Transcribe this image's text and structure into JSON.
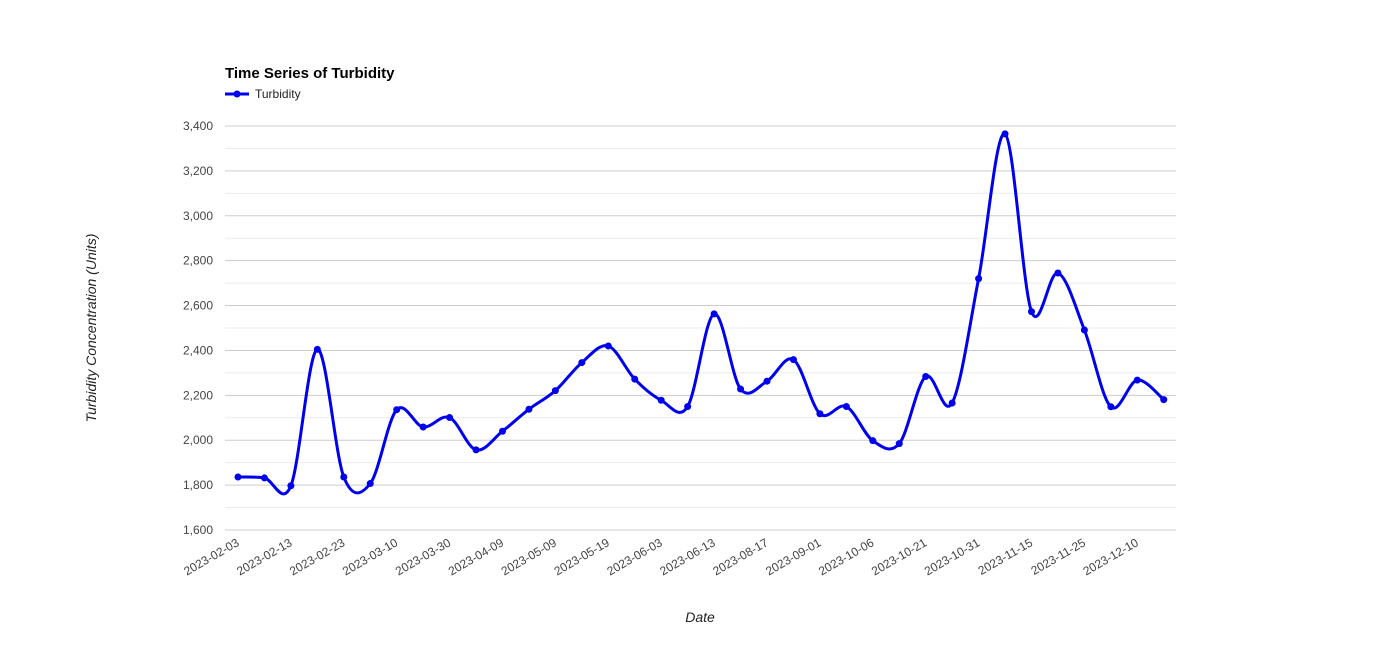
{
  "chart_data": {
    "type": "line",
    "title": "Time Series of Turbidity",
    "xlabel": "Date",
    "ylabel": "Turbidity Concentration (Units)",
    "ylim": [
      1600,
      3400
    ],
    "y_ticks": [
      "1,600",
      "1,800",
      "2,000",
      "2,200",
      "2,400",
      "2,600",
      "2,800",
      "3,000",
      "3,200",
      "3,400"
    ],
    "x_tick_labels": [
      "2023-02-03",
      "2023-02-13",
      "2023-02-23",
      "2023-03-10",
      "2023-03-30",
      "2023-04-09",
      "2023-05-09",
      "2023-05-19",
      "2023-06-03",
      "2023-06-13",
      "2023-08-17",
      "2023-09-01",
      "2023-10-06",
      "2023-10-21",
      "2023-10-31",
      "2023-11-15",
      "2023-11-25",
      "2023-12-10"
    ],
    "grid": true,
    "legend_position": "top-left",
    "line_color": "#0000ee",
    "series": [
      {
        "name": "Turbidity",
        "values": [
          1836,
          1832,
          1797,
          2405,
          1836,
          1807,
          2136,
          2059,
          2101,
          1957,
          2040,
          2138,
          2221,
          2346,
          2420,
          2272,
          2178,
          2150,
          2563,
          2228,
          2263,
          2359,
          2118,
          2150,
          1998,
          1985,
          2284,
          2166,
          2720,
          3365,
          2573,
          2745,
          2491,
          2149,
          2268,
          2181
        ]
      }
    ]
  }
}
